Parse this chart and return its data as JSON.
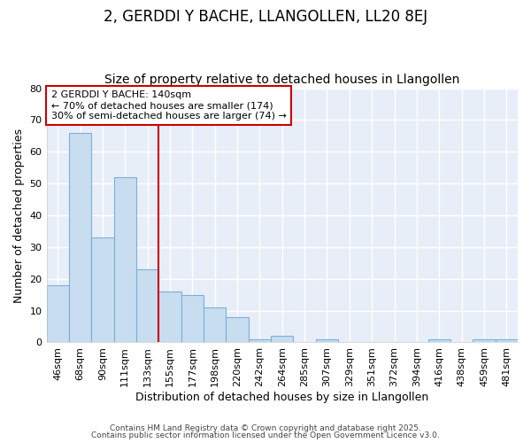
{
  "title": "2, GERDDI Y BACHE, LLANGOLLEN, LL20 8EJ",
  "subtitle": "Size of property relative to detached houses in Llangollen",
  "xlabel": "Distribution of detached houses by size in Llangollen",
  "ylabel": "Number of detached properties",
  "categories": [
    "46sqm",
    "68sqm",
    "90sqm",
    "111sqm",
    "133sqm",
    "155sqm",
    "177sqm",
    "198sqm",
    "220sqm",
    "242sqm",
    "264sqm",
    "285sqm",
    "307sqm",
    "329sqm",
    "351sqm",
    "372sqm",
    "394sqm",
    "416sqm",
    "438sqm",
    "459sqm",
    "481sqm"
  ],
  "values": [
    18,
    66,
    33,
    52,
    23,
    16,
    15,
    11,
    8,
    1,
    2,
    0,
    1,
    0,
    0,
    0,
    0,
    1,
    0,
    1,
    1
  ],
  "bar_color": "#c8ddf0",
  "bar_edge_color": "#7ab0d8",
  "vline_x_index": 4,
  "vline_color": "#cc0000",
  "annotation_text": "2 GERDDI Y BACHE: 140sqm\n← 70% of detached houses are smaller (174)\n30% of semi-detached houses are larger (74) →",
  "annotation_box_color": "#ffffff",
  "annotation_box_edge": "#cc0000",
  "ylim": [
    0,
    80
  ],
  "yticks": [
    0,
    10,
    20,
    30,
    40,
    50,
    60,
    70,
    80
  ],
  "fig_bg_color": "#ffffff",
  "plot_bg_color": "#e8eef8",
  "grid_color": "#ffffff",
  "footer_line1": "Contains HM Land Registry data © Crown copyright and database right 2025.",
  "footer_line2": "Contains public sector information licensed under the Open Government Licence v3.0.",
  "title_fontsize": 12,
  "subtitle_fontsize": 10,
  "axis_label_fontsize": 9,
  "tick_fontsize": 8,
  "annotation_fontsize": 8
}
